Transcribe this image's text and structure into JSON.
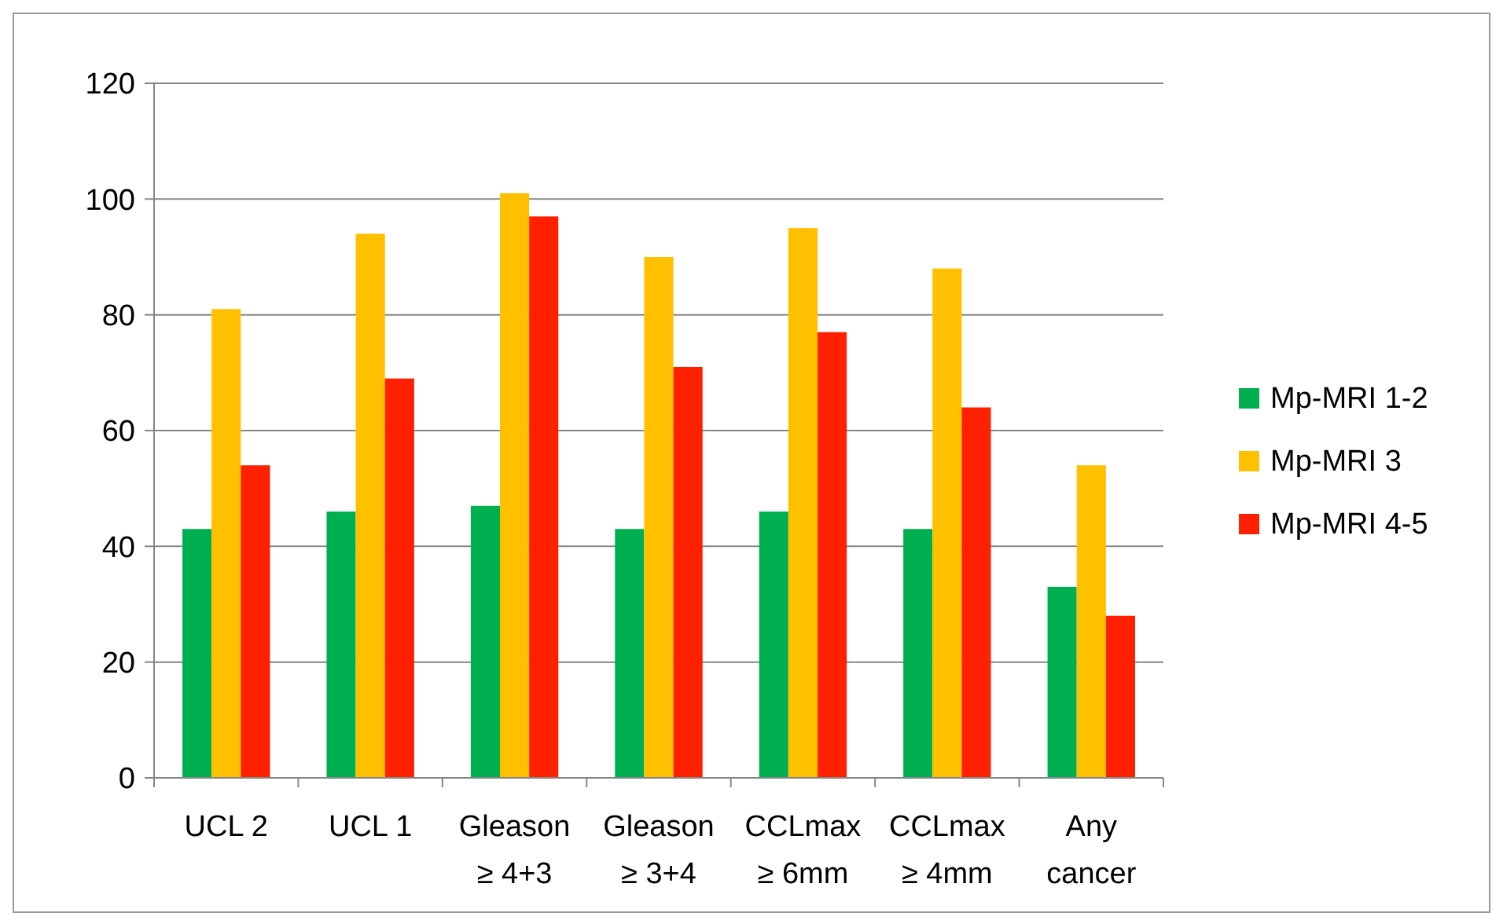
{
  "chart_data": {
    "type": "bar",
    "categories": [
      "UCL 2",
      "UCL 1",
      "Gleason ≥ 4+3",
      "Gleason ≥ 3+4",
      "CCLmax ≥ 6mm",
      "CCLmax ≥ 4mm",
      "Any cancer"
    ],
    "series": [
      {
        "name": "Mp-MRI 1-2",
        "color": "#00b050",
        "values": [
          43,
          46,
          47,
          43,
          46,
          43,
          33
        ]
      },
      {
        "name": "Mp-MRI 3",
        "color": "#ffc000",
        "values": [
          81,
          94,
          101,
          90,
          95,
          88,
          54
        ]
      },
      {
        "name": "Mp-MRI 4-5",
        "color": "#ff2000",
        "values": [
          54,
          69,
          97,
          71,
          77,
          64,
          28
        ]
      }
    ],
    "ylim": [
      0,
      120
    ],
    "yticks": [
      0,
      20,
      40,
      60,
      80,
      100,
      120
    ],
    "grid": "y",
    "legend": "right"
  }
}
